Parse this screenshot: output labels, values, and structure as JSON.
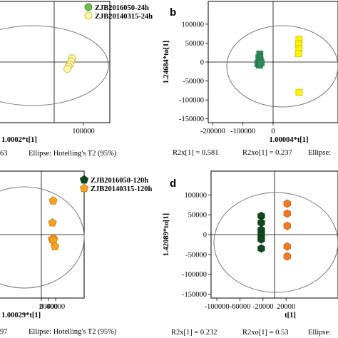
{
  "chart_data": [
    {
      "panel_label": "",
      "type": "scatter",
      "xlabel": "1.0002*t[1]",
      "ylabel": "",
      "xlim": [
        -190000,
        190000
      ],
      "ylim": [
        -160000,
        160000
      ],
      "xticks": [
        {
          "v": 100000,
          "label": "100000"
        }
      ],
      "yticks": [],
      "legend": [
        "ZJB2016050-24h",
        "ZJB20140315-24h"
      ],
      "series": [
        {
          "name": "ZJB20140315-24h",
          "color": "#fff7a8",
          "stroke": "#c8b040",
          "marker": "circle",
          "x": [
            61000,
            58000,
            54000,
            49000,
            45000
          ],
          "y": [
            10000,
            2000,
            -6000,
            -12000,
            -18000
          ]
        }
      ],
      "footer": [
        {
          "text": "63",
          "side": "left"
        },
        {
          "text": "Ellipse: Hotelling's T2 (95%)",
          "side": "mid"
        }
      ]
    },
    {
      "panel_label": "b",
      "type": "scatter",
      "xlabel": "1.00004*t[1]",
      "ylabel": "1.24684*to[1]",
      "xlim": [
        -215000,
        215000
      ],
      "ylim": [
        -160000,
        160000
      ],
      "xticks": [
        {
          "v": -200000,
          "label": "-200000"
        },
        {
          "v": -100000,
          "label": "-100000"
        },
        {
          "v": 0,
          "label": "0"
        }
      ],
      "yticks": [
        {
          "v": 100000,
          "label": "100000"
        },
        {
          "v": 50000,
          "label": "50000"
        },
        {
          "v": 0,
          "label": "0"
        },
        {
          "v": -50000,
          "label": "-50000"
        },
        {
          "v": -100000,
          "label": "-100000"
        },
        {
          "v": -150000,
          "label": "-150000"
        }
      ],
      "series": [
        {
          "name": "ZJB2016050-24h",
          "color": "#2f8a5e",
          "stroke": "#1e6a44",
          "marker": "square",
          "x": [
            -44000,
            -47000,
            -43000,
            -50000,
            -45000,
            -40000
          ],
          "y": [
            21000,
            11000,
            4000,
            -4000,
            -8000,
            -2000
          ]
        },
        {
          "name": "ZJB20140315-24h",
          "color": "#fff200",
          "stroke": "#b8a800",
          "marker": "square",
          "x": [
            86000,
            84000,
            86000,
            84000,
            86000
          ],
          "y": [
            60000,
            48000,
            35000,
            22000,
            -80000
          ]
        }
      ],
      "footer": [
        {
          "text": "R2x[1] = 0.581",
          "side": "left"
        },
        {
          "text": "R2xo[1] = 0.237",
          "side": "mid"
        },
        {
          "text": "Ellipse:",
          "side": "right"
        }
      ]
    },
    {
      "panel_label": "",
      "type": "scatter",
      "xlabel": "1.00029*t[1]",
      "ylabel": "",
      "xlim": [
        -120000,
        120000
      ],
      "ylim": [
        -150000,
        150000
      ],
      "xticks": [
        {
          "v": 0,
          "label": "0"
        },
        {
          "v": 20000,
          "label": "20000"
        },
        {
          "v": 40000,
          "label": "40000"
        }
      ],
      "yticks": [],
      "legend": [
        "ZJB2016050-120h",
        "ZJB20140315-120h"
      ],
      "series": [
        {
          "name": "ZJB20140315-120h",
          "color": "#f4a020",
          "stroke": "#c57a10",
          "marker": "pentagon",
          "x": [
            33000,
            31000,
            34000,
            30000,
            34000,
            38000
          ],
          "y": [
            80000,
            28000,
            -9000,
            -11000,
            -13000,
            -28000
          ]
        }
      ],
      "footer": [
        {
          "text": "97",
          "side": "left"
        },
        {
          "text": "Ellipse: Hotelling's T2 (95%)",
          "side": "mid"
        }
      ]
    },
    {
      "panel_label": "d",
      "type": "scatter",
      "xlabel": "t[1]",
      "ylabel": "1.42089*to[1]",
      "xlim": [
        -110000,
        110000
      ],
      "ylim": [
        -160000,
        160000
      ],
      "xticks": [
        {
          "v": -100000,
          "label": "-100000"
        },
        {
          "v": -60000,
          "label": "-60000"
        },
        {
          "v": -20000,
          "label": "-20000"
        },
        {
          "v": 20000,
          "label": "20000"
        }
      ],
      "yticks": [
        {
          "v": 100000,
          "label": "100000"
        },
        {
          "v": 50000,
          "label": "50000"
        },
        {
          "v": 0,
          "label": "0"
        },
        {
          "v": -50000,
          "label": "-50000"
        },
        {
          "v": -100000,
          "label": "-100000"
        },
        {
          "v": -150000,
          "label": "-150000"
        }
      ],
      "series": [
        {
          "name": "ZJB2016050-120h",
          "color": "#0e4a1e",
          "stroke": "#062e10",
          "marker": "hexagon",
          "x": [
            -23000,
            -23000,
            -23000,
            -23000,
            -23000,
            -23000
          ],
          "y": [
            47000,
            30000,
            12000,
            0,
            -12000,
            -35000
          ]
        },
        {
          "name": "ZJB20140315-120h",
          "color": "#f07a20",
          "stroke": "#c05a10",
          "marker": "hexagon",
          "x": [
            22000,
            22000,
            22000,
            22000,
            22000
          ],
          "y": [
            78000,
            53000,
            22000,
            -30000,
            -55000
          ]
        }
      ],
      "footer": [
        {
          "text": "R2x[1] = 0.232",
          "side": "left"
        },
        {
          "text": "R2xo[1] = 0.53",
          "side": "mid"
        },
        {
          "text": "Ellipse:",
          "side": "right"
        }
      ]
    }
  ]
}
